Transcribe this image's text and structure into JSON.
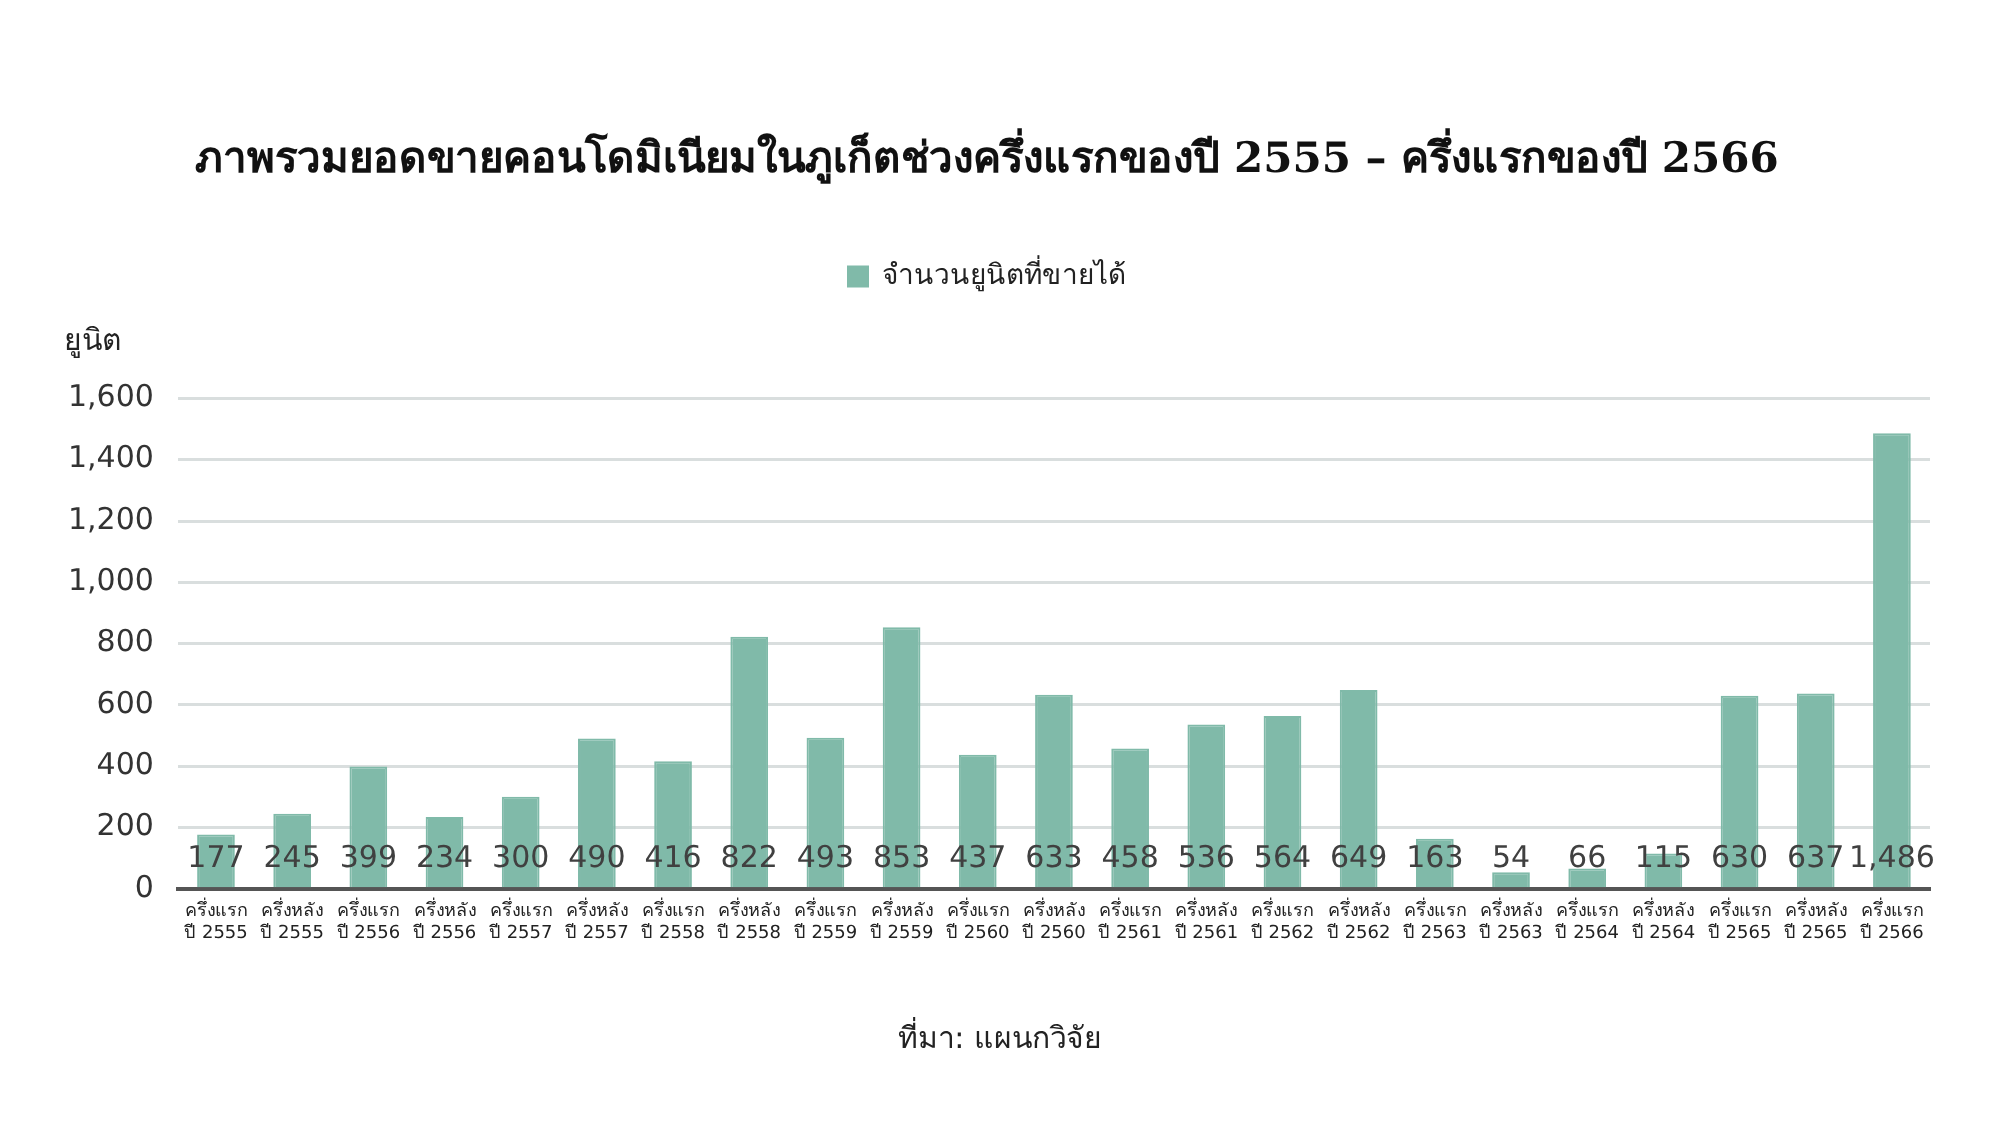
{
  "chart_data": {
    "type": "bar",
    "title": "ภาพรวมยอดขายคอนโดมิเนียมในภูเก็ตช่วงครึ่งแรกของปี 2555 – ครึ่งแรกของปี 2566",
    "ylabel": "ยูนิต",
    "categories": [
      "ครึ่งแรก\nปี 2555",
      "ครึ่งหลัง\nปี 2555",
      "ครึ่งแรก\nปี 2556",
      "ครึ่งหลัง\nปี 2556",
      "ครึ่งแรก\nปี 2557",
      "ครึ่งหลัง\nปี 2557",
      "ครึ่งแรก\nปี 2558",
      "ครึ่งหลัง\nปี 2558",
      "ครึ่งแรก\nปี 2559",
      "ครึ่งหลัง\nปี 2559",
      "ครึ่งแรก\nปี 2560",
      "ครึ่งหลัง\nปี 2560",
      "ครึ่งแรก\nปี 2561",
      "ครึ่งหลัง\nปี 2561",
      "ครึ่งแรก\nปี 2562",
      "ครึ่งหลัง\nปี 2562",
      "ครึ่งแรก\nปี 2563",
      "ครึ่งหลัง\nปี 2563",
      "ครึ่งแรก\nปี 2564",
      "ครึ่งหลัง\nปี 2564",
      "ครึ่งแรก\nปี 2565",
      "ครึ่งหลัง\nปี 2565",
      "ครึ่งแรก\nปี 2566"
    ],
    "series": [
      {
        "name": "จำนวนยูนิตที่ขายได้",
        "color": "#80baa9",
        "values": [
          177,
          245,
          399,
          234,
          300,
          490,
          416,
          822,
          493,
          853,
          437,
          633,
          458,
          536,
          564,
          649,
          163,
          54,
          66,
          115,
          630,
          637,
          1486
        ],
        "value_labels": [
          "177",
          "245",
          "399",
          "234",
          "300",
          "490",
          "416",
          "822",
          "493",
          "853",
          "437",
          "633",
          "458",
          "536",
          "564",
          "649",
          "163",
          "54",
          "66",
          "115",
          "630",
          "637",
          "1,486"
        ]
      }
    ],
    "ylim": [
      0,
      1600
    ],
    "yticks": [
      0,
      200,
      400,
      600,
      800,
      {
        "value": 1000,
        "label": "1,000"
      },
      {
        "value": 1200,
        "label": "1,200"
      },
      {
        "value": 1400,
        "label": "1,400"
      },
      {
        "value": 1600,
        "label": "1,600"
      }
    ],
    "grid": "y",
    "legend": "top",
    "annotations": [
      "ที่มา: แผนกวิจัย"
    ]
  }
}
